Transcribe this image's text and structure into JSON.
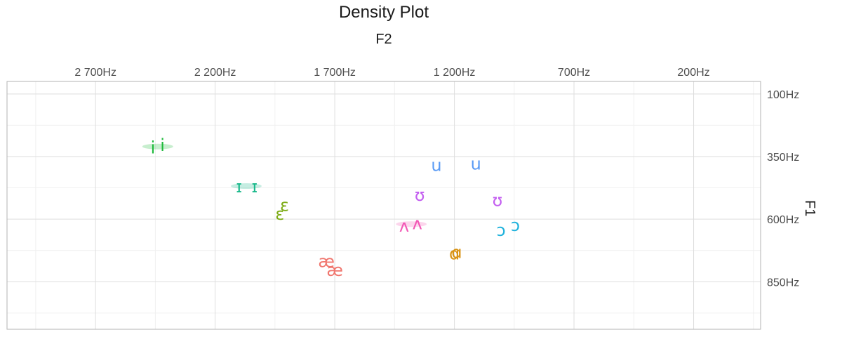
{
  "chart_data": {
    "type": "scatter",
    "title": "Density Plot",
    "xlabel": "F2",
    "ylabel": "F1",
    "x_axis_position": "top",
    "y_axis_position": "right",
    "x_reversed": true,
    "y_reversed": true,
    "xlim": [
      3070,
      -80
    ],
    "ylim": [
      1040,
      50
    ],
    "grid": true,
    "x_ticks": [
      {
        "value": 2700,
        "label": "2 700Hz"
      },
      {
        "value": 2200,
        "label": "2 200Hz"
      },
      {
        "value": 1700,
        "label": "1 700Hz"
      },
      {
        "value": 1200,
        "label": "1 200Hz"
      },
      {
        "value": 700,
        "label": "700Hz"
      },
      {
        "value": 200,
        "label": "200Hz"
      }
    ],
    "y_ticks": [
      {
        "value": 100,
        "label": "100Hz"
      },
      {
        "value": 350,
        "label": "350Hz"
      },
      {
        "value": 600,
        "label": "600Hz"
      },
      {
        "value": 850,
        "label": "850Hz"
      }
    ],
    "series": [
      {
        "name": "i",
        "color": "#1fba3c",
        "points": [
          {
            "x": 2460,
            "y": 315,
            "label": "i"
          },
          {
            "x": 2420,
            "y": 305,
            "label": "i"
          }
        ],
        "density": [
          2440,
          310
        ]
      },
      {
        "name": "ɪ",
        "color": "#1ab98b",
        "points": [
          {
            "x": 2100,
            "y": 470,
            "label": "ɪ"
          },
          {
            "x": 2035,
            "y": 470,
            "label": "ɪ"
          }
        ],
        "density": [
          2070,
          468
        ]
      },
      {
        "name": "ɛ",
        "color": "#7cab14",
        "points": [
          {
            "x": 1930,
            "y": 580,
            "label": "ɛ"
          },
          {
            "x": 1910,
            "y": 545,
            "label": "ɛ"
          }
        ],
        "density": null
      },
      {
        "name": "æ",
        "color": "#f0766e",
        "points": [
          {
            "x": 1735,
            "y": 770,
            "label": "æ"
          },
          {
            "x": 1700,
            "y": 805,
            "label": "æ"
          }
        ],
        "density": null
      },
      {
        "name": "ʌ",
        "color": "#f256b5",
        "points": [
          {
            "x": 1410,
            "y": 628,
            "label": "ʌ"
          },
          {
            "x": 1355,
            "y": 618,
            "label": "ʌ"
          }
        ],
        "density": [
          1380,
          620
        ]
      },
      {
        "name": "ɑ",
        "color": "#d99314",
        "points": [
          {
            "x": 1200,
            "y": 738,
            "label": "ɑ"
          },
          {
            "x": 1190,
            "y": 733,
            "label": "ɑ"
          }
        ],
        "density": null
      },
      {
        "name": "ʊ",
        "color": "#c35ef0",
        "points": [
          {
            "x": 1345,
            "y": 505,
            "label": "ʊ"
          },
          {
            "x": 1020,
            "y": 525,
            "label": "ʊ"
          }
        ],
        "density": null
      },
      {
        "name": "u",
        "color": "#5a9bf5",
        "points": [
          {
            "x": 1275,
            "y": 385,
            "label": "u"
          },
          {
            "x": 1110,
            "y": 380,
            "label": "u"
          }
        ],
        "density": null
      },
      {
        "name": "ɔ",
        "color": "#1fb2dc",
        "points": [
          {
            "x": 1005,
            "y": 645,
            "label": "ɔ"
          },
          {
            "x": 945,
            "y": 625,
            "label": "ɔ"
          }
        ],
        "density": null
      }
    ]
  }
}
